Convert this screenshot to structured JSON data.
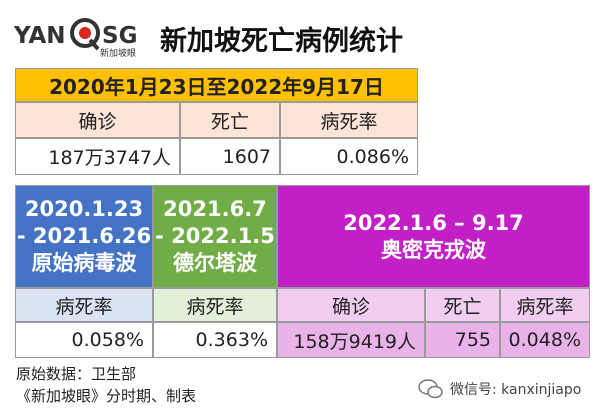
{
  "logo": {
    "left": "YAN",
    "right": "SG",
    "sub": "新加坡眼"
  },
  "title": "新加坡死亡病例统计",
  "overall": {
    "period": "2020年1月23日至2022年9月17日",
    "headers": [
      "确诊",
      "死亡",
      "病死率"
    ],
    "values": [
      "187万3747人",
      "1607",
      "0.086%"
    ]
  },
  "waves": [
    {
      "period": [
        "2020.1.23",
        "- 2021.6.26"
      ],
      "name": "原始病毒波",
      "headers": [
        "病死率"
      ],
      "values": [
        "0.058%"
      ]
    },
    {
      "period": [
        "2021.6.7",
        "- 2022.1.5"
      ],
      "name": "德尔塔波",
      "headers": [
        "病死率"
      ],
      "values": [
        "0.363%"
      ]
    },
    {
      "period": [
        "2022.1.6 – 9.17"
      ],
      "name": "奥密克戎波",
      "headers": [
        "确诊",
        "死亡",
        "病死率"
      ],
      "values": [
        "158万9419人",
        "755",
        "0.048%"
      ]
    }
  ],
  "footer": {
    "source": "原始数据：卫生部",
    "credit": "《新加坡眼》分时期、制表",
    "wechat": "微信号: kanxinjiapo"
  }
}
